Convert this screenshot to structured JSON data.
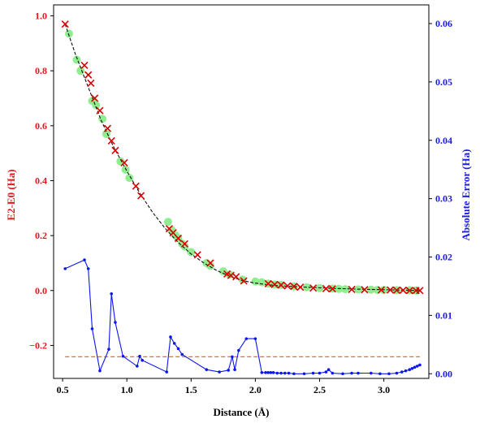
{
  "chart_data": {
    "type": "line",
    "xlabel": "Distance (Å)",
    "ylabel_left": "E2-E0 (Ha)",
    "ylabel_right": "Absolute Error (Ha)",
    "xlim": [
      0.43,
      3.35
    ],
    "ylim_left": [
      -0.32,
      1.04
    ],
    "ylim_right": [
      -0.0008,
      0.0632
    ],
    "x_ticks": [
      0.5,
      1.0,
      1.5,
      2.0,
      2.5,
      3.0
    ],
    "x_tick_labels": [
      "0.5",
      "1.0",
      "1.5",
      "2.0",
      "2.5",
      "3.0"
    ],
    "y_left_ticks": [
      1.0,
      0.8,
      0.6,
      0.4,
      0.2,
      0.0,
      -0.2
    ],
    "y_left_tick_labels": [
      "1.0",
      "0.8",
      "0.6",
      "0.4",
      "0.2",
      "0.0",
      "−0.2"
    ],
    "y_right_ticks": [
      0.06,
      0.05,
      0.04,
      0.03,
      0.02,
      0.01,
      0.0
    ],
    "y_right_tick_labels": [
      "0.06",
      "0.05",
      "0.04",
      "0.03",
      "0.02",
      "0.01",
      "0.00"
    ],
    "colors": {
      "left_axis": "#e8141c",
      "right_axis": "#1a1af0",
      "reference_line": "#111111",
      "green_markers": "#90ee90",
      "red_markers": "#dd0000",
      "error_line": "#0b16f0",
      "threshold": "#f0692a"
    },
    "series": [
      {
        "role": "reference_curve",
        "axis": "left",
        "style": "black dashed line",
        "x": [
          0.52,
          0.6,
          0.7,
          0.8,
          0.9,
          1.0,
          1.1,
          1.2,
          1.3,
          1.4,
          1.5,
          1.6,
          1.7,
          1.8,
          1.9,
          2.0,
          2.1,
          2.2,
          2.4,
          2.6,
          2.8,
          3.0,
          3.28
        ],
        "y": [
          0.97,
          0.86,
          0.74,
          0.62,
          0.52,
          0.435,
          0.355,
          0.285,
          0.225,
          0.175,
          0.133,
          0.1,
          0.073,
          0.052,
          0.036,
          0.027,
          0.021,
          0.017,
          0.012,
          0.008,
          0.005,
          0.003,
          0.0
        ]
      },
      {
        "role": "green_markers",
        "axis": "left",
        "style": "light green filled circles",
        "x": [
          0.55,
          0.61,
          0.64,
          0.73,
          0.76,
          0.81,
          0.84,
          0.95,
          0.99,
          1.02,
          1.32,
          1.35,
          1.38,
          1.4,
          1.43,
          1.45,
          1.5,
          1.62,
          1.65,
          1.75,
          1.8,
          1.9,
          2.0,
          2.05,
          2.1,
          2.15,
          2.2,
          2.3,
          2.4,
          2.5,
          2.6,
          2.65,
          2.7,
          2.8,
          2.9,
          2.95,
          3.0,
          3.1,
          3.2,
          3.25
        ],
        "y": [
          0.935,
          0.84,
          0.8,
          0.69,
          0.675,
          0.625,
          0.57,
          0.47,
          0.44,
          0.41,
          0.25,
          0.22,
          0.2,
          0.19,
          0.17,
          0.16,
          0.14,
          0.1,
          0.09,
          0.07,
          0.058,
          0.04,
          0.033,
          0.03,
          0.025,
          0.022,
          0.02,
          0.015,
          0.012,
          0.009,
          0.007,
          0.006,
          0.005,
          0.004,
          0.003,
          0.002,
          0.002,
          0.001,
          0.001,
          0.0
        ]
      },
      {
        "role": "red_markers",
        "axis": "left",
        "style": "red x markers",
        "x": [
          0.52,
          0.67,
          0.7,
          0.72,
          0.75,
          0.79,
          0.85,
          0.88,
          0.91,
          0.98,
          1.07,
          1.11,
          1.33,
          1.36,
          1.4,
          1.45,
          1.55,
          1.65,
          1.78,
          1.81,
          1.85,
          1.91,
          2.1,
          2.15,
          2.2,
          2.25,
          2.3,
          2.35,
          2.45,
          2.55,
          2.6,
          2.75,
          2.85,
          2.98,
          3.05,
          3.1,
          3.15,
          3.2,
          3.25,
          3.28
        ],
        "y": [
          0.97,
          0.82,
          0.785,
          0.755,
          0.7,
          0.655,
          0.59,
          0.545,
          0.51,
          0.465,
          0.38,
          0.345,
          0.225,
          0.21,
          0.19,
          0.17,
          0.13,
          0.1,
          0.06,
          0.055,
          0.05,
          0.035,
          0.025,
          0.022,
          0.02,
          0.017,
          0.015,
          0.012,
          0.009,
          0.007,
          0.006,
          0.004,
          0.003,
          0.002,
          0.002,
          0.001,
          0.001,
          0.0,
          0.0,
          0.0
        ]
      },
      {
        "role": "absolute_error",
        "axis": "right",
        "style": "blue line with small dots",
        "x": [
          0.52,
          0.67,
          0.7,
          0.73,
          0.79,
          0.86,
          0.88,
          0.91,
          0.97,
          1.08,
          1.1,
          1.12,
          1.31,
          1.34,
          1.37,
          1.4,
          1.43,
          1.62,
          1.72,
          1.79,
          1.82,
          1.84,
          1.87,
          1.93,
          2.0,
          2.05,
          2.08,
          2.1,
          2.12,
          2.14,
          2.17,
          2.2,
          2.23,
          2.26,
          2.3,
          2.38,
          2.45,
          2.5,
          2.55,
          2.57,
          2.6,
          2.68,
          2.75,
          2.8,
          2.9,
          2.97,
          3.04,
          3.1,
          3.14,
          3.17,
          3.2,
          3.22,
          3.24,
          3.26,
          3.28
        ],
        "y": [
          0.018,
          0.0195,
          0.018,
          0.0077,
          0.0005,
          0.0042,
          0.0137,
          0.0088,
          0.003,
          0.0013,
          0.003,
          0.0023,
          0.0003,
          0.0063,
          0.0052,
          0.0043,
          0.0033,
          0.0007,
          0.0003,
          0.0006,
          0.0029,
          0.0007,
          0.004,
          0.006,
          0.006,
          0.0002,
          0.0002,
          0.0002,
          0.0002,
          0.0002,
          0.0001,
          0.0001,
          0.0001,
          0.0001,
          0.0,
          0.0,
          0.0001,
          0.0001,
          0.0003,
          0.0007,
          0.0001,
          0.0,
          0.0001,
          0.0001,
          0.0001,
          0.0,
          0.0,
          0.0001,
          0.0003,
          0.0005,
          0.0007,
          0.0009,
          0.0011,
          0.0013,
          0.0015
        ]
      },
      {
        "role": "threshold",
        "axis": "right",
        "style": "orange dashed horizontal line",
        "x": [
          0.52,
          3.28
        ],
        "y": [
          0.0029,
          0.0029
        ]
      }
    ]
  }
}
